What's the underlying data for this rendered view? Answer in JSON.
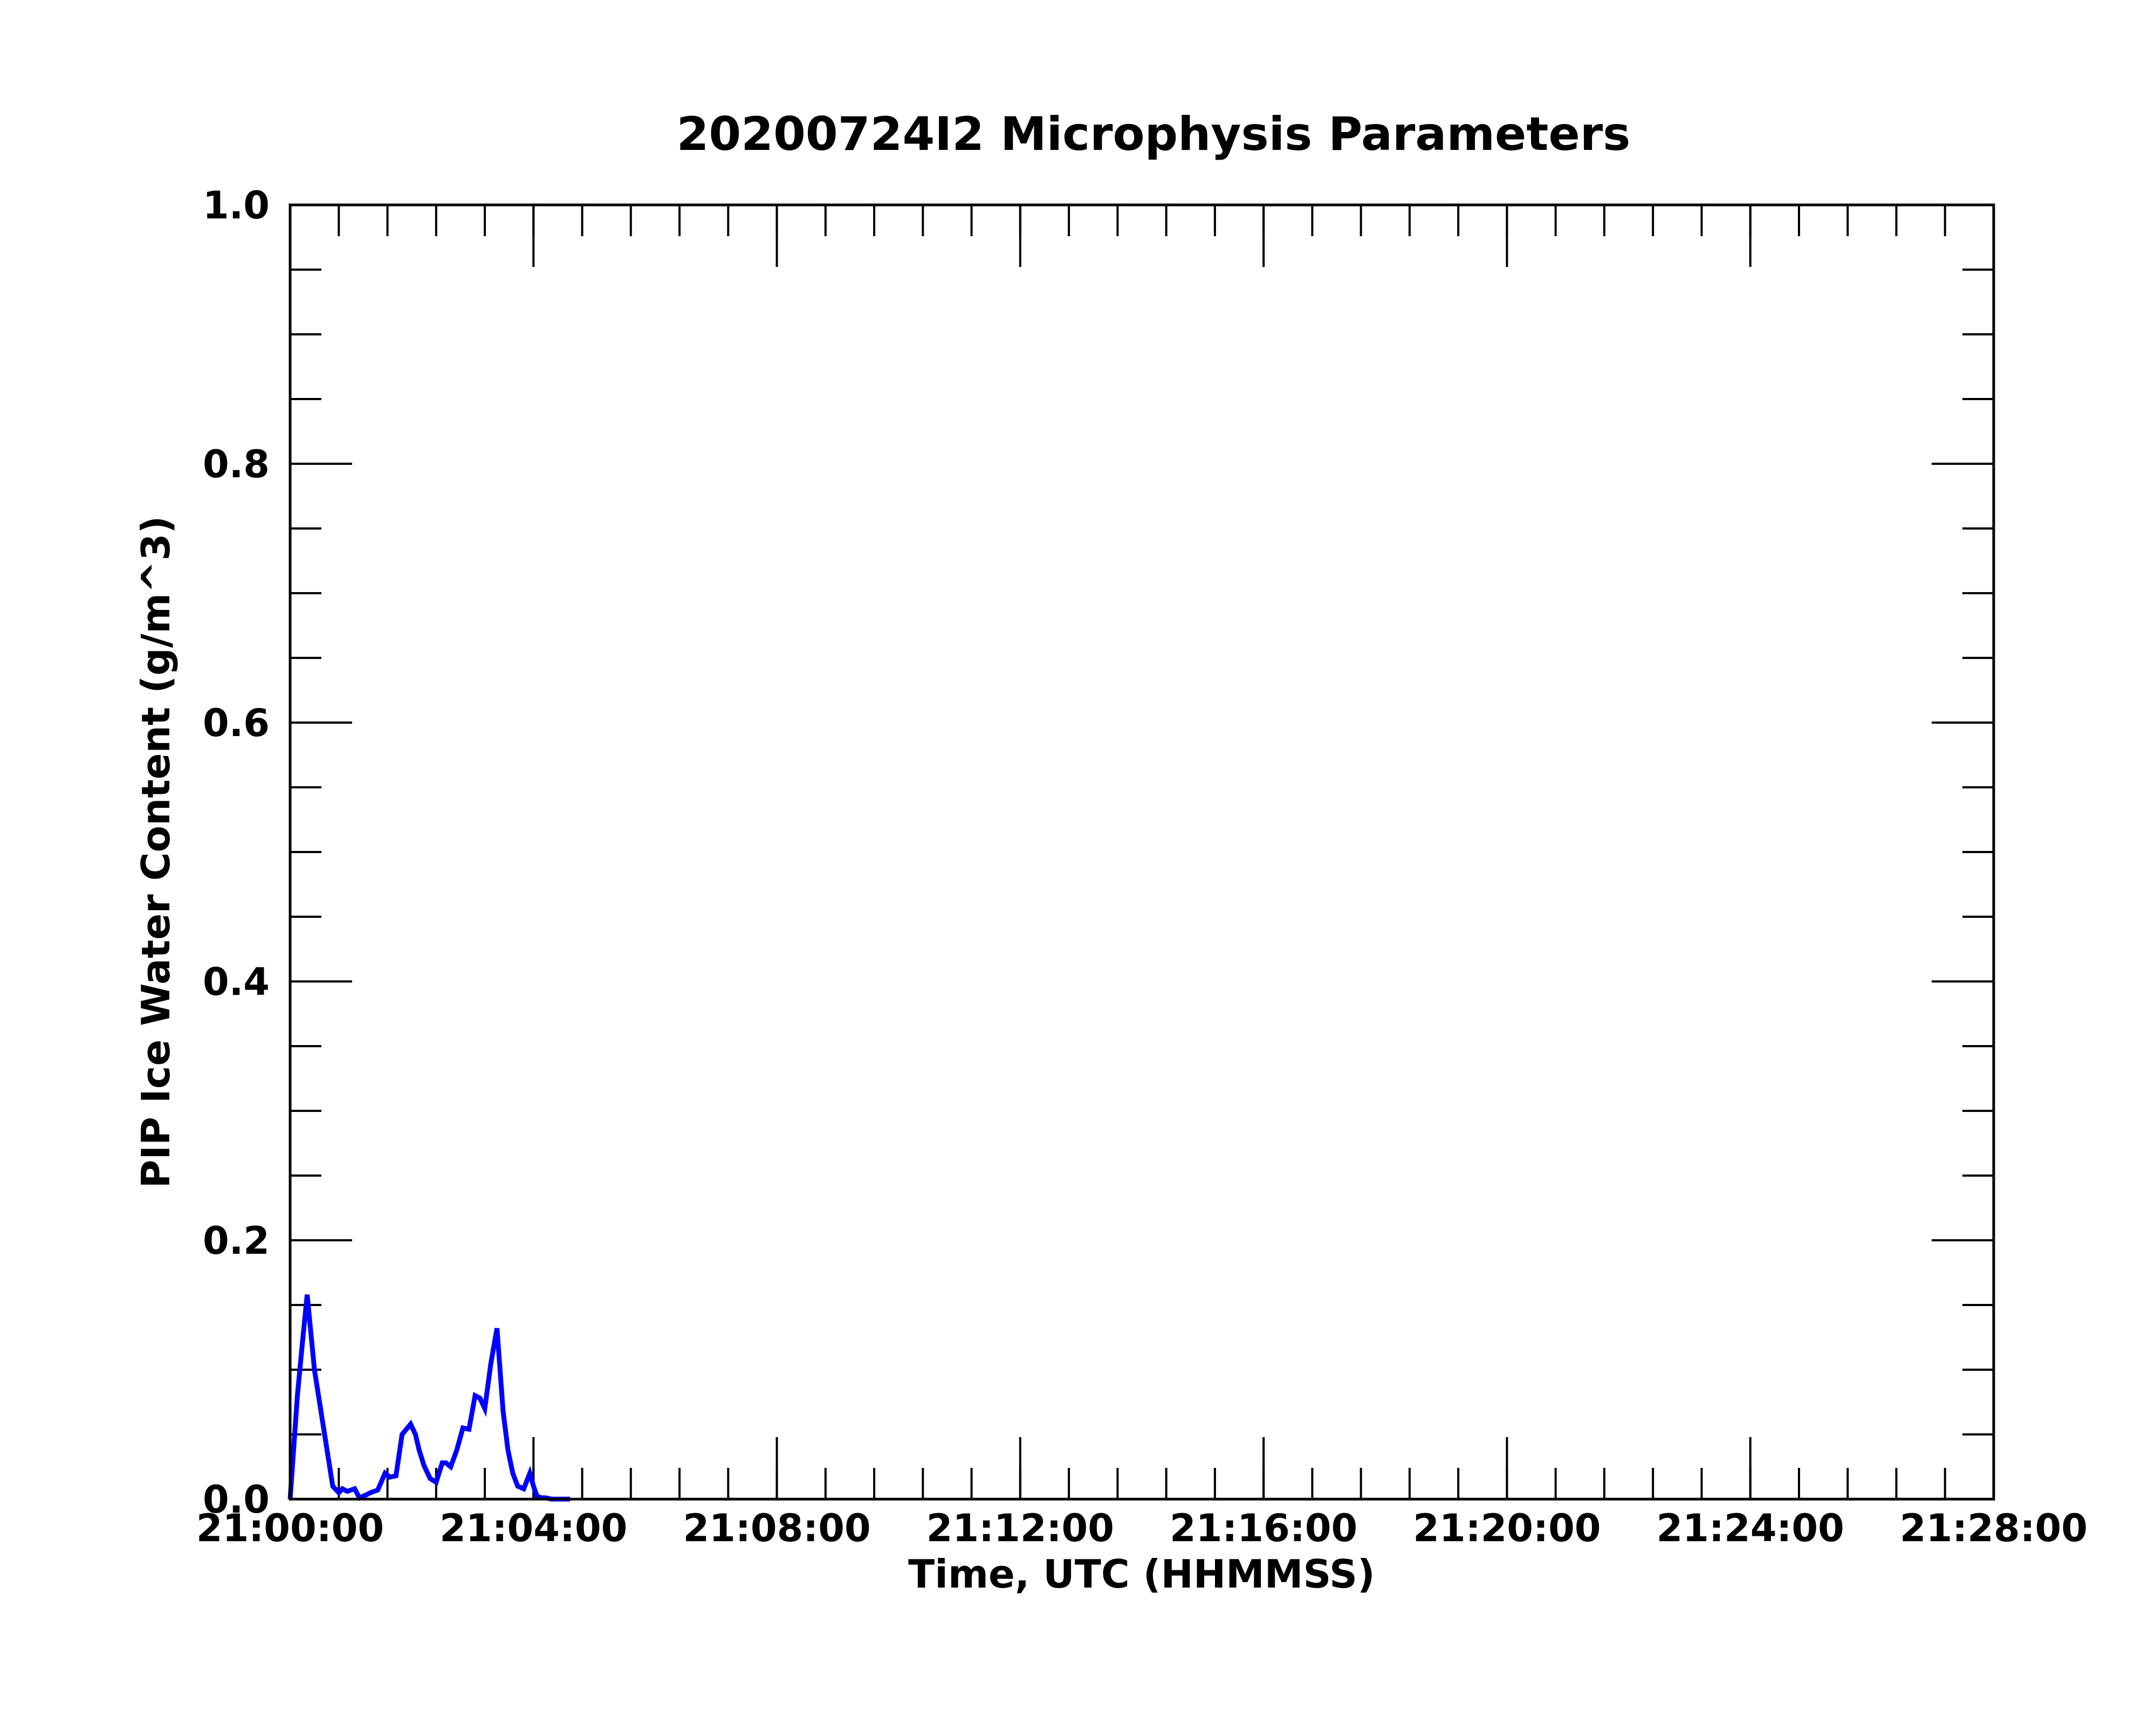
{
  "chart_data": {
    "type": "line",
    "title": "20200724I2 Microphysis Parameters",
    "xlabel": "Time, UTC (HHMMSS)",
    "ylabel": "PIP Ice Water Content (g/m^3)",
    "x_unit": "minutes after 21:00:00",
    "xlim": [
      0,
      28
    ],
    "ylim": [
      0,
      1.0
    ],
    "x_ticks": [
      {
        "value": 0,
        "label": "21:00:00"
      },
      {
        "value": 4,
        "label": "21:04:00"
      },
      {
        "value": 8,
        "label": "21:08:00"
      },
      {
        "value": 12,
        "label": "21:12:00"
      },
      {
        "value": 16,
        "label": "21:16:00"
      },
      {
        "value": 20,
        "label": "21:20:00"
      },
      {
        "value": 24,
        "label": "21:24:00"
      },
      {
        "value": 28,
        "label": "21:28:00"
      }
    ],
    "y_ticks": [
      {
        "value": 0.0,
        "label": "0.0"
      },
      {
        "value": 0.2,
        "label": "0.2"
      },
      {
        "value": 0.4,
        "label": "0.4"
      },
      {
        "value": 0.6,
        "label": "0.6"
      },
      {
        "value": 0.8,
        "label": "0.8"
      },
      {
        "value": 1.0,
        "label": "1.0"
      }
    ],
    "x_minor_step": 0.8,
    "y_minor_step": 0.05,
    "grid": false,
    "legend": "none",
    "series": [
      {
        "color": "#0000ff",
        "x": [
          0.0,
          0.12,
          0.2,
          0.28,
          0.4,
          0.5,
          0.6,
          0.7,
          0.8,
          0.86,
          0.94,
          1.06,
          1.14,
          1.24,
          1.32,
          1.44,
          1.56,
          1.64,
          1.74,
          1.84,
          1.98,
          2.06,
          2.12,
          2.2,
          2.3,
          2.4,
          2.5,
          2.56,
          2.64,
          2.74,
          2.84,
          2.94,
          3.04,
          3.12,
          3.2,
          3.3,
          3.4,
          3.5,
          3.58,
          3.66,
          3.74,
          3.84,
          3.94,
          4.0,
          4.06,
          4.14,
          4.2,
          4.3,
          4.6
        ],
        "y": [
          0.0,
          0.08,
          0.12,
          0.158,
          0.1,
          0.07,
          0.04,
          0.01,
          0.005,
          0.008,
          0.006,
          0.008,
          0.001,
          0.003,
          0.005,
          0.007,
          0.02,
          0.017,
          0.018,
          0.05,
          0.058,
          0.05,
          0.038,
          0.026,
          0.016,
          0.013,
          0.028,
          0.028,
          0.025,
          0.038,
          0.055,
          0.054,
          0.08,
          0.078,
          0.07,
          0.105,
          0.132,
          0.068,
          0.038,
          0.02,
          0.01,
          0.008,
          0.02,
          0.01,
          0.002,
          0.001,
          0.001,
          0.0,
          0.0
        ]
      }
    ]
  }
}
